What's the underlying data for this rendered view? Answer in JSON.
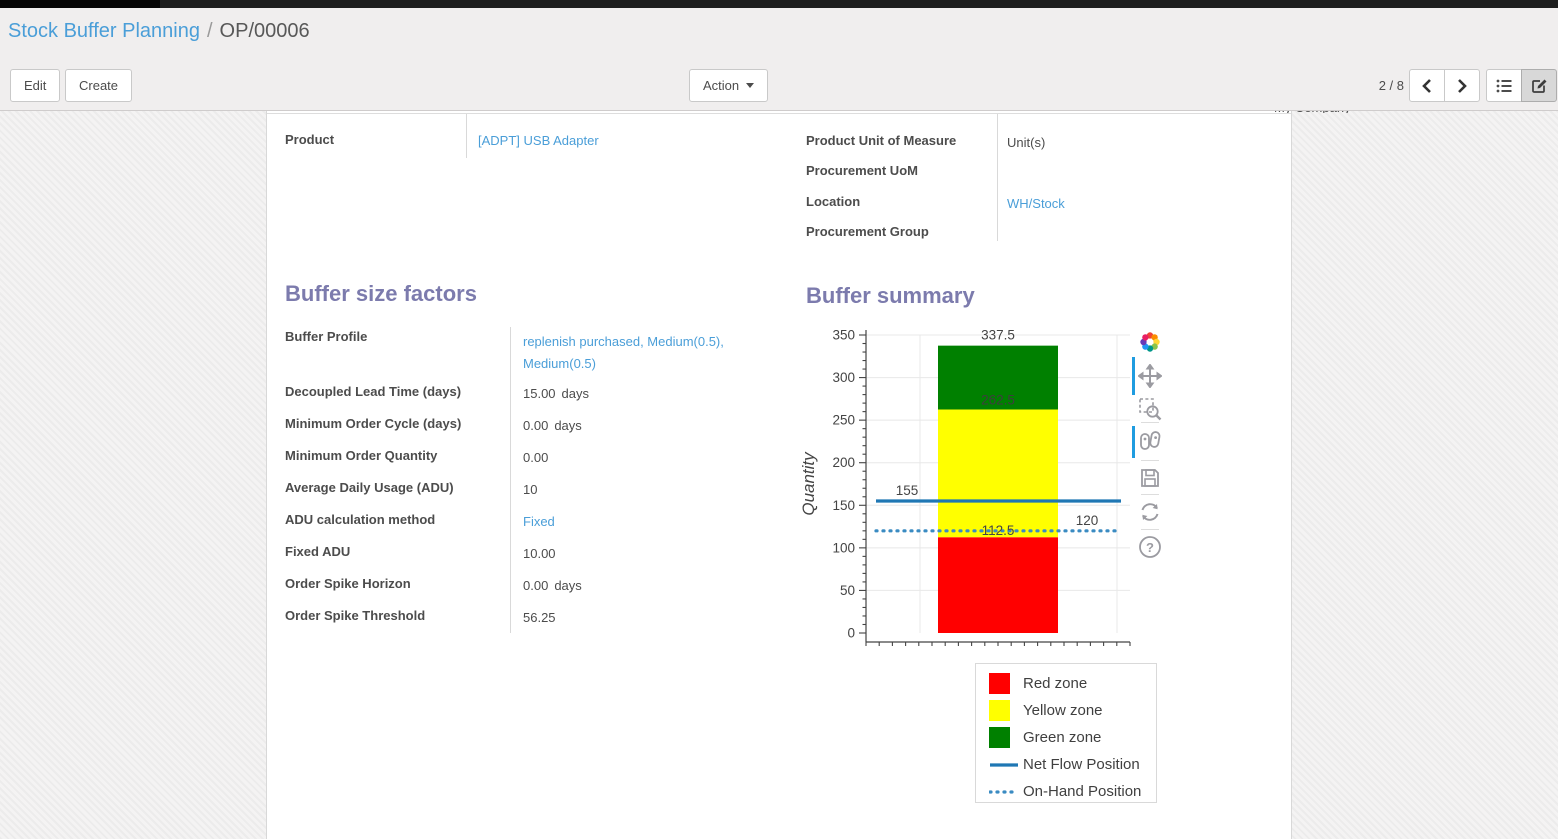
{
  "breadcrumb": {
    "parent": "Stock Buffer Planning",
    "separator": "/",
    "current": "OP/00006"
  },
  "control_panel": {
    "edit_label": "Edit",
    "create_label": "Create",
    "action_label": "Action",
    "pager_value": "2 / 8"
  },
  "form": {
    "clipped_value": "My Company",
    "product_group": {
      "product_label": "Product",
      "product_value": "[ADPT] USB Adapter",
      "right_rows": [
        {
          "label": "Product Unit of Measure",
          "value": "Unit(s)",
          "link": false
        },
        {
          "label": "Procurement UoM",
          "value": "",
          "link": false
        },
        {
          "label": "Location",
          "value": "WH/Stock",
          "link": true
        },
        {
          "label": "Procurement Group",
          "value": "",
          "link": false
        }
      ]
    },
    "buffer_factors": {
      "heading": "Buffer size factors",
      "rows": [
        {
          "label": "Buffer Profile",
          "value": "replenish purchased, Medium(0.5), Medium(0.5)",
          "unit": "",
          "link": true
        },
        {
          "label": "Decoupled Lead Time (days)",
          "value": "15.00",
          "unit": "days",
          "link": false
        },
        {
          "label": "Minimum Order Cycle (days)",
          "value": "0.00",
          "unit": "days",
          "link": false
        },
        {
          "label": "Minimum Order Quantity",
          "value": "0.00",
          "unit": "",
          "link": false
        },
        {
          "label": "Average Daily Usage (ADU)",
          "value": "10",
          "unit": "",
          "link": false
        },
        {
          "label": "ADU calculation method",
          "value": "Fixed",
          "unit": "",
          "link": true
        },
        {
          "label": "Fixed ADU",
          "value": "10.00",
          "unit": "",
          "link": false
        },
        {
          "label": "Order Spike Horizon",
          "value": "0.00",
          "unit": "days",
          "link": false
        },
        {
          "label": "Order Spike Threshold",
          "value": "56.25",
          "unit": "",
          "link": false
        }
      ]
    },
    "buffer_summary_heading": "Buffer summary"
  },
  "chart_data": {
    "type": "bar",
    "title": "Buffer summary",
    "ylabel": "Quantity",
    "ylim": [
      0,
      350
    ],
    "ytick_step": 50,
    "ytick_minor_step": 10,
    "grid": true,
    "zones": [
      {
        "name": "Red zone",
        "from": 0,
        "to": 112.5,
        "color": "#ff0000"
      },
      {
        "name": "Yellow zone",
        "from": 112.5,
        "to": 262.5,
        "color": "#ffff00"
      },
      {
        "name": "Green zone",
        "from": 262.5,
        "to": 337.5,
        "color": "#008000"
      }
    ],
    "zone_labels": [
      {
        "text": "337.5",
        "value": 337.5,
        "placement": "above-bar"
      },
      {
        "text": "262.5",
        "value": 262.5,
        "placement": "on-bar"
      },
      {
        "text": "112.5",
        "value": 112.5,
        "placement": "on-bar"
      }
    ],
    "lines": [
      {
        "name": "Net Flow Position",
        "label": "155",
        "value": 155,
        "style": "solid",
        "color": "#1f77b4",
        "label_side": "left"
      },
      {
        "name": "On-Hand Position",
        "label": "120",
        "value": 120,
        "style": "dotted",
        "color": "#3a8bc2",
        "label_side": "right"
      }
    ],
    "legend": [
      {
        "label": "Red zone",
        "swatch": "square",
        "color": "#ff0000"
      },
      {
        "label": "Yellow zone",
        "swatch": "square",
        "color": "#ffff00"
      },
      {
        "label": "Green zone",
        "swatch": "square",
        "color": "#008000"
      },
      {
        "label": "Net Flow Position",
        "swatch": "line-solid",
        "color": "#1f77b4"
      },
      {
        "label": "On-Hand Position",
        "swatch": "line-dotted",
        "color": "#3a8bc2"
      }
    ],
    "legend_position": "bottom-right"
  },
  "modebar_icons": [
    "plotly-logo",
    "pan",
    "box-zoom",
    "compare-hover",
    "save",
    "reset",
    "help"
  ]
}
